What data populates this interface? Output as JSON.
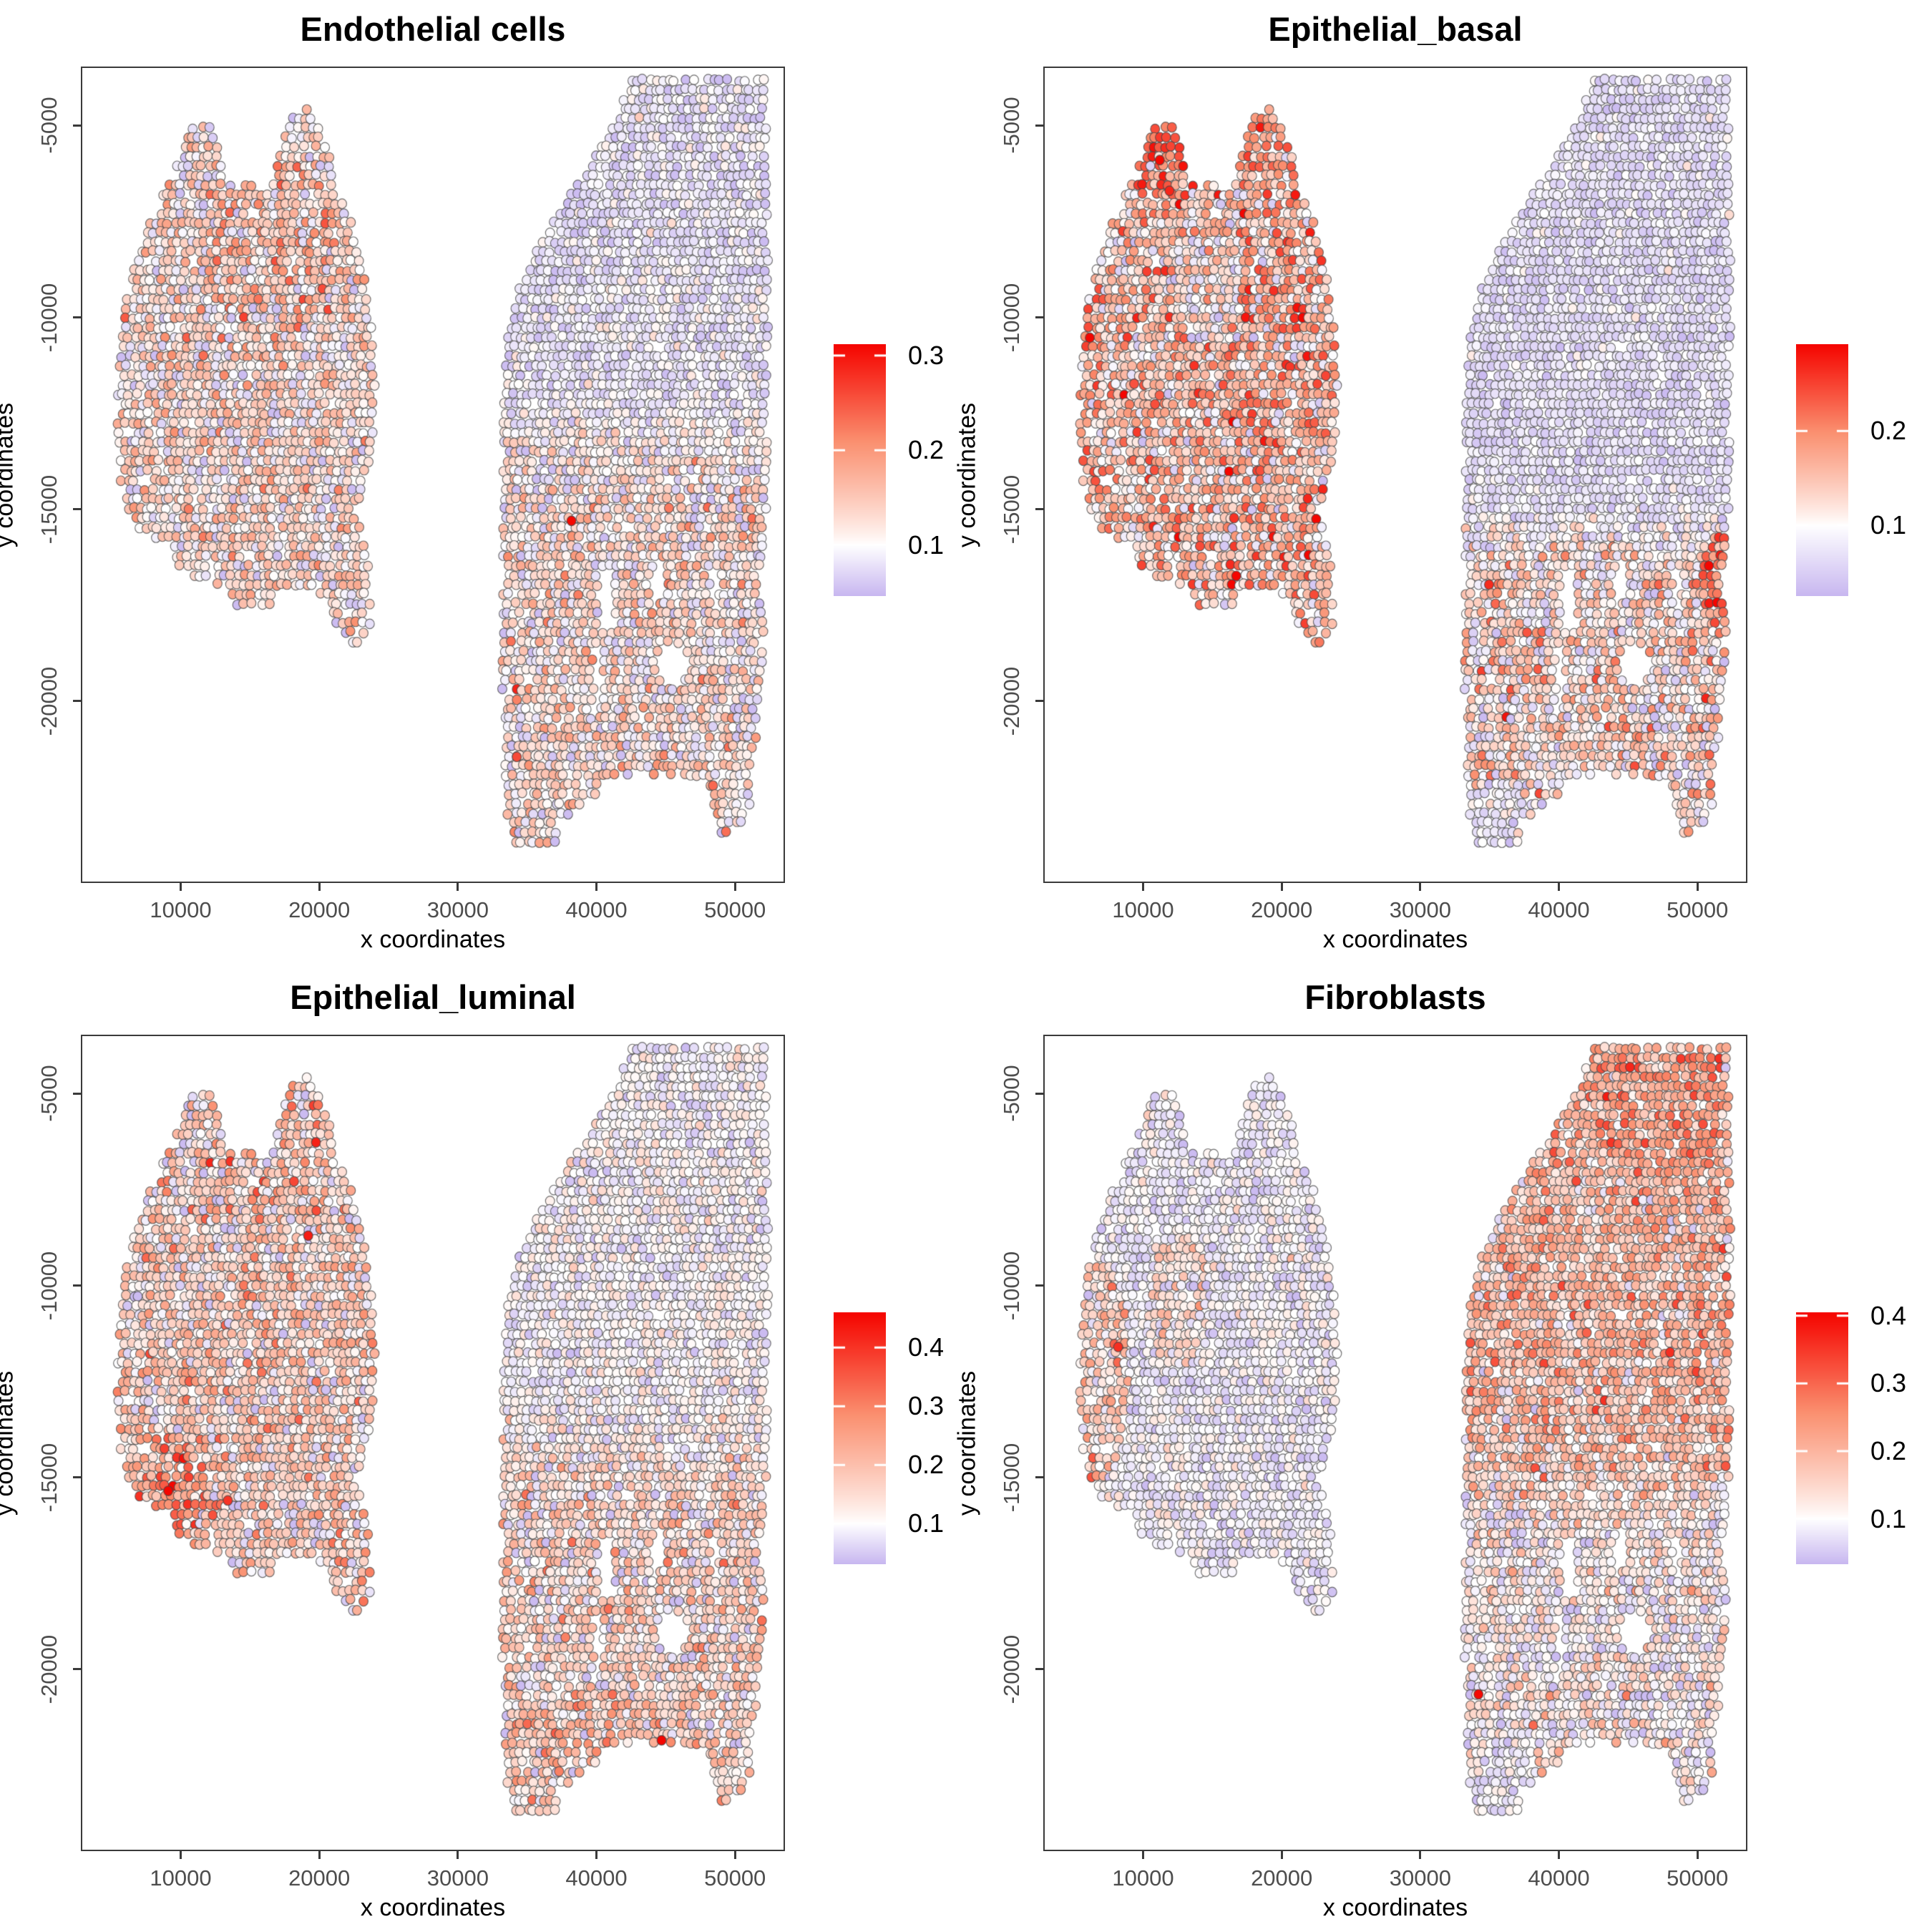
{
  "chart_data": {
    "type": "scatter",
    "panels": [
      {
        "title": "Endothelial cells",
        "seed": 101,
        "legend": {
          "ticks": [
            0.3,
            0.2,
            0.1
          ],
          "max": 0.312,
          "min": 0.046,
          "white_point": 0.1
        },
        "fields": {
          "left": {
            "mean": 0.125,
            "sd": 0.042
          },
          "right_top": {
            "mean": 0.083,
            "sd": 0.02
          },
          "right_bottom": {
            "mean": 0.125,
            "sd": 0.042
          },
          "split_y": -13300
        },
        "patches": [
          [
            16500,
            -8200,
            5500,
            2300,
            0.155,
            0.05
          ]
        ],
        "outliers": [
          [
            38200,
            -15300,
            0.31
          ],
          [
            34250,
            -21450,
            0.26
          ]
        ]
      },
      {
        "title": "Epithelial_basal",
        "seed": 202,
        "legend": {
          "ticks": [
            0.2,
            0.1
          ],
          "max": 0.292,
          "min": 0.025,
          "white_point": 0.1
        },
        "fields": {
          "left": {
            "mean": 0.155,
            "sd": 0.055
          },
          "right_top": {
            "mean": 0.068,
            "sd": 0.018
          },
          "right_bottom": {
            "mean": 0.12,
            "sd": 0.05
          },
          "split_y": -15600
        },
        "patches": [
          [
            11500,
            -5600,
            2600,
            1900,
            0.205,
            0.05
          ],
          [
            19000,
            -5300,
            2600,
            1700,
            0.185,
            0.05
          ],
          [
            14500,
            -9200,
            2600,
            1400,
            0.105,
            0.045
          ],
          [
            51600,
            -16900,
            1200,
            1400,
            0.2,
            0.06
          ],
          [
            35500,
            -23000,
            2200,
            900,
            0.08,
            0.025
          ]
        ],
        "outliers": [
          [
            11200,
            -5900,
            0.29
          ],
          [
            11900,
            -6700,
            0.27
          ]
        ]
      },
      {
        "title": "Epithelial_luminal",
        "seed": 303,
        "legend": {
          "ticks": [
            0.4,
            0.3,
            0.2,
            0.1
          ],
          "max": 0.46,
          "min": 0.031,
          "white_point": 0.1
        },
        "fields": {
          "left": {
            "mean": 0.165,
            "sd": 0.075
          },
          "right_top": {
            "mean": 0.1,
            "sd": 0.032
          },
          "right_bottom": {
            "mean": 0.155,
            "sd": 0.068
          },
          "split_y": -14300
        },
        "patches": [
          [
            9100,
            -15250,
            2700,
            1500,
            0.27,
            0.1
          ],
          [
            16200,
            -5800,
            3800,
            2100,
            0.2,
            0.09
          ],
          [
            40000,
            -22100,
            7000,
            1600,
            0.19,
            0.08
          ]
        ],
        "outliers": [
          [
            9100,
            -15350,
            0.46
          ],
          [
            19200,
            -8700,
            0.43
          ],
          [
            44700,
            -21850,
            0.46
          ],
          [
            13400,
            -15600,
            0.4
          ]
        ]
      },
      {
        "title": "Fibroblasts",
        "seed": 404,
        "legend": {
          "ticks": [
            0.4,
            0.3,
            0.2,
            0.1
          ],
          "max": 0.405,
          "min": 0.033,
          "white_point": 0.1
        },
        "fields": {
          "left": {
            "mean": 0.088,
            "sd": 0.028
          },
          "right_top": {
            "mean": 0.19,
            "sd": 0.06
          },
          "right_bottom": {
            "mean": 0.115,
            "sd": 0.05
          },
          "split_y": -15200
        },
        "patches": [
          [
            6700,
            -12200,
            2400,
            2900,
            0.16,
            0.06
          ],
          [
            12500,
            -10300,
            2300,
            1800,
            0.13,
            0.05
          ],
          [
            47500,
            -5300,
            5600,
            1900,
            0.23,
            0.06
          ],
          [
            36000,
            -22900,
            2600,
            1000,
            0.085,
            0.025
          ]
        ],
        "outliers": [
          [
            34200,
            -20650,
            0.4
          ],
          [
            8200,
            -11600,
            0.36
          ]
        ]
      }
    ],
    "shared": {
      "xlabel": "x coordinates",
      "ylabel": "y coordinates",
      "x_ticks": [
        10000,
        20000,
        30000,
        40000,
        50000
      ],
      "y_ticks": [
        -5000,
        -10000,
        -15000,
        -20000
      ],
      "x_range": [
        2900,
        53500
      ],
      "y_range": [
        -3500,
        -24700
      ],
      "grid": false,
      "legend_position": "right",
      "colors": {
        "red": "#F50500",
        "salmon": "#FA9070",
        "purple": "#C8B7F0",
        "white": "#FFFFFF",
        "stroke": "rgba(70,70,70,0.78)",
        "axis": "#3A3A3A",
        "tick_label": "#4D4D4D"
      },
      "point": {
        "radius_x": 6.4,
        "radius_y": 6.8,
        "row_pitch": 248,
        "col_pitch": 455,
        "jitter_x": 300,
        "jitter_y": 64,
        "dropout": 0.05,
        "seed": 20240,
        "y_start": -3820,
        "y_end": -24100
      },
      "regions": {
        "left_lobe": [
          [
            10700,
            -5000
          ],
          [
            12100,
            -5000
          ],
          [
            12650,
            -5500
          ],
          [
            12950,
            -6150
          ],
          [
            13250,
            -6550
          ],
          [
            16500,
            -6550
          ],
          [
            16900,
            -6100
          ],
          [
            17300,
            -5300
          ],
          [
            18100,
            -4750
          ],
          [
            19000,
            -4550
          ],
          [
            19900,
            -4750
          ],
          [
            20500,
            -5400
          ],
          [
            21100,
            -6200
          ],
          [
            21500,
            -6700
          ],
          [
            22300,
            -7500
          ],
          [
            22900,
            -8300
          ],
          [
            23400,
            -9300
          ],
          [
            23800,
            -10400
          ],
          [
            24000,
            -11700
          ],
          [
            23950,
            -13200
          ],
          [
            23400,
            -14400
          ],
          [
            22750,
            -14900
          ],
          [
            23300,
            -15700
          ],
          [
            23650,
            -16400
          ],
          [
            23650,
            -18200
          ],
          [
            22900,
            -18600
          ],
          [
            22200,
            -18500
          ],
          [
            21100,
            -17900
          ],
          [
            20200,
            -17350
          ],
          [
            19400,
            -17050
          ],
          [
            16900,
            -17050
          ],
          [
            16400,
            -17500
          ],
          [
            13600,
            -17500
          ],
          [
            13400,
            -16950
          ],
          [
            12700,
            -16950
          ],
          [
            10400,
            -16700
          ],
          [
            9500,
            -16300
          ],
          [
            9200,
            -15900
          ],
          [
            7200,
            -15600
          ],
          [
            6100,
            -15100
          ],
          [
            5600,
            -14200
          ],
          [
            5400,
            -12700
          ],
          [
            5500,
            -11200
          ],
          [
            5900,
            -9900
          ],
          [
            6500,
            -8800
          ],
          [
            7500,
            -7800
          ],
          [
            8600,
            -6900
          ],
          [
            9400,
            -6300
          ],
          [
            10200,
            -5600
          ]
        ],
        "left_holes": [
          [
            12250,
            -16600,
            350,
            280
          ]
        ],
        "right_lobe": [
          [
            42400,
            -3750
          ],
          [
            52200,
            -3750
          ],
          [
            52450,
            -8000
          ],
          [
            52350,
            -12000
          ],
          [
            52250,
            -15500
          ],
          [
            51600,
            -16800
          ],
          [
            52050,
            -18200
          ],
          [
            51850,
            -19600
          ],
          [
            51450,
            -21300
          ],
          [
            51250,
            -22400
          ],
          [
            50700,
            -23150
          ],
          [
            49100,
            -23600
          ],
          [
            48700,
            -22900
          ],
          [
            47900,
            -22050
          ],
          [
            46350,
            -21950
          ],
          [
            46100,
            -21900
          ],
          [
            40100,
            -21950
          ],
          [
            40050,
            -22400
          ],
          [
            38600,
            -22800
          ],
          [
            37400,
            -23200
          ],
          [
            37050,
            -23700
          ],
          [
            34000,
            -23730
          ],
          [
            33600,
            -23100
          ],
          [
            33400,
            -22200
          ],
          [
            33250,
            -21000
          ],
          [
            33150,
            -19000
          ],
          [
            33200,
            -16500
          ],
          [
            33300,
            -13500
          ],
          [
            33300,
            -10600
          ],
          [
            34300,
            -9300
          ],
          [
            35500,
            -8300
          ],
          [
            37200,
            -7300
          ],
          [
            39000,
            -6300
          ],
          [
            40800,
            -5300
          ],
          [
            42000,
            -4300
          ]
        ],
        "right_holes": [
          [
            45400,
            -19050,
            1150,
            600
          ],
          [
            40100,
            -19400,
            330,
            950
          ],
          [
            40700,
            -17200,
            550,
            800
          ],
          [
            44500,
            -16750,
            500,
            550
          ],
          [
            48500,
            -17000,
            330,
            450
          ]
        ]
      }
    }
  }
}
